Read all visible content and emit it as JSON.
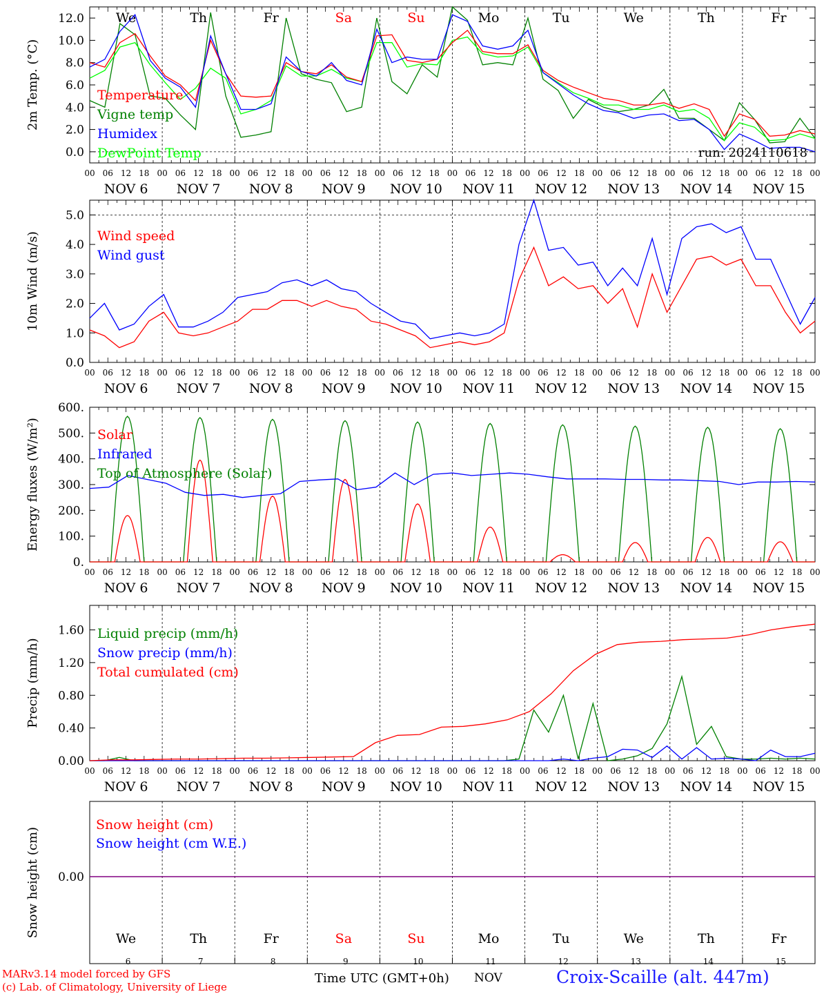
{
  "chart_data": [
    {
      "type": "line",
      "ylabel": "2m Temp. (°C)",
      "ylim": [
        -1.0,
        13.0
      ],
      "yticks": [
        "0.0",
        "2.0",
        "4.0",
        "6.0",
        "8.0",
        "10.0",
        "12.0"
      ],
      "ytick_values": [
        0,
        2,
        4,
        6,
        8,
        10,
        12
      ],
      "dashed_y": [
        0
      ],
      "grid": "vertical dashed at day boundaries",
      "legend_position": "left",
      "series": [
        {
          "name": "Temperature",
          "color": "#ff0000",
          "values": [
            8.0,
            7.6,
            9.8,
            10.6,
            8.6,
            6.8,
            6.0,
            4.6,
            10.0,
            7.0,
            5.0,
            4.9,
            5.0,
            8.0,
            7.2,
            7.0,
            7.8,
            6.7,
            6.3,
            10.4,
            10.5,
            8.2,
            8.0,
            8.3,
            9.8,
            10.9,
            9.0,
            8.8,
            8.8,
            9.6,
            7.3,
            6.4,
            5.8,
            5.3,
            4.8,
            4.6,
            4.2,
            4.2,
            4.4,
            3.9,
            4.3,
            3.8,
            1.4,
            3.4,
            2.9,
            1.4,
            1.5,
            1.9,
            1.6
          ]
        },
        {
          "name": "Vigne temp",
          "color": "#008000",
          "values": [
            4.6,
            4.0,
            11.5,
            10.5,
            5.0,
            4.8,
            3.3,
            2.0,
            12.5,
            5.0,
            1.3,
            1.5,
            1.8,
            12.0,
            7.0,
            6.5,
            6.2,
            3.6,
            4.0,
            12.0,
            6.3,
            5.2,
            7.8,
            6.7,
            13.0,
            11.8,
            7.8,
            8.0,
            7.8,
            12.0,
            6.5,
            5.5,
            3.0,
            4.7,
            4.0,
            3.6,
            3.8,
            4.2,
            5.6,
            3.0,
            3.0,
            2.0,
            1.0,
            4.4,
            2.9,
            0.8,
            0.9,
            3.0,
            1.2
          ]
        },
        {
          "name": "Humidex",
          "color": "#0000ff",
          "values": [
            7.6,
            8.3,
            10.8,
            12.3,
            8.2,
            6.6,
            5.8,
            4.0,
            10.4,
            7.0,
            3.8,
            3.8,
            4.3,
            8.5,
            7.2,
            6.8,
            8.0,
            6.4,
            6.0,
            11.0,
            8.0,
            8.5,
            8.3,
            8.3,
            12.3,
            11.7,
            9.5,
            9.2,
            9.5,
            10.9,
            7.1,
            6.1,
            5.1,
            4.3,
            3.7,
            3.5,
            3.0,
            3.3,
            3.4,
            2.8,
            2.9,
            2.0,
            0.2,
            1.6,
            1.0,
            0.3,
            0.4,
            0.4,
            0.0
          ]
        },
        {
          "name": "DewPoint Temp",
          "color": "#00ff00",
          "values": [
            6.6,
            7.3,
            9.4,
            9.8,
            7.8,
            6.2,
            4.7,
            5.7,
            7.5,
            6.6,
            3.4,
            3.8,
            4.6,
            7.7,
            6.8,
            6.8,
            7.4,
            6.6,
            6.3,
            9.8,
            9.8,
            7.6,
            7.9,
            7.8,
            10.0,
            10.3,
            8.8,
            8.5,
            8.6,
            9.4,
            7.1,
            6.2,
            5.3,
            4.8,
            4.2,
            4.2,
            3.8,
            3.8,
            4.2,
            3.6,
            3.8,
            3.0,
            1.0,
            2.6,
            2.2,
            1.0,
            1.1,
            1.6,
            1.2
          ]
        }
      ],
      "day_labels": [
        "We",
        "Th",
        "Fr",
        "Sa",
        "Su",
        "Mo",
        "Tu",
        "We",
        "Th",
        "Fr"
      ],
      "annotation": "run: 2024110618"
    },
    {
      "type": "line",
      "ylabel": "10m Wind (m/s)",
      "ylim": [
        0,
        5.5
      ],
      "yticks": [
        "0.0",
        "1.0",
        "2.0",
        "3.0",
        "4.0",
        "5.0"
      ],
      "ytick_values": [
        0,
        1,
        2,
        3,
        4,
        5
      ],
      "dashed_y": [
        5
      ],
      "legend_position": "top-left",
      "series": [
        {
          "name": "Wind speed",
          "color": "#ff0000",
          "values": [
            1.1,
            0.9,
            0.5,
            0.7,
            1.4,
            1.7,
            1.0,
            0.9,
            1.0,
            1.2,
            1.4,
            1.8,
            1.8,
            2.1,
            2.1,
            1.9,
            2.1,
            1.9,
            1.8,
            1.4,
            1.3,
            1.1,
            0.9,
            0.5,
            0.6,
            0.7,
            0.6,
            0.7,
            1.0,
            2.8,
            3.9,
            2.6,
            2.9,
            2.5,
            2.6,
            2.0,
            2.5,
            1.2,
            3.0,
            1.7,
            2.6,
            3.5,
            3.6,
            3.3,
            3.5,
            2.6,
            2.6,
            1.7,
            1.0,
            1.4
          ]
        },
        {
          "name": "Wind gust",
          "color": "#0000ff",
          "values": [
            1.5,
            2.0,
            1.1,
            1.3,
            1.9,
            2.3,
            1.2,
            1.2,
            1.4,
            1.7,
            2.2,
            2.3,
            2.4,
            2.7,
            2.8,
            2.6,
            2.8,
            2.5,
            2.4,
            2.0,
            1.7,
            1.4,
            1.3,
            0.8,
            0.9,
            1.0,
            0.9,
            1.0,
            1.3,
            4.0,
            5.5,
            3.8,
            3.9,
            3.3,
            3.4,
            2.6,
            3.2,
            2.6,
            4.2,
            2.3,
            4.2,
            4.6,
            4.7,
            4.4,
            4.6,
            3.5,
            3.5,
            2.4,
            1.3,
            2.2
          ]
        }
      ]
    },
    {
      "type": "line",
      "ylabel": "Energy fluxes (W/m²)",
      "ylim": [
        0,
        600
      ],
      "yticks": [
        "0.",
        "100.",
        "200.",
        "300.",
        "400.",
        "500.",
        "600."
      ],
      "ytick_values": [
        0,
        100,
        200,
        300,
        400,
        500,
        600
      ],
      "legend_position": "top-left",
      "series": [
        {
          "name": "Solar",
          "color": "#ff0000",
          "peaks": [
            180,
            395,
            255,
            320,
            225,
            135,
            28,
            75,
            95,
            78
          ]
        },
        {
          "name": "Infrared",
          "color": "#0000ff",
          "values": [
            285,
            290,
            335,
            320,
            305,
            270,
            258,
            262,
            250,
            258,
            265,
            312,
            318,
            322,
            280,
            290,
            345,
            300,
            340,
            345,
            335,
            340,
            345,
            340,
            330,
            322,
            322,
            322,
            320,
            320,
            318,
            318,
            315,
            312,
            300,
            310,
            310,
            312,
            310
          ]
        },
        {
          "name": "Top of Atmosphere (Solar)",
          "color": "#008000",
          "peaks": [
            565,
            560,
            553,
            548,
            543,
            537,
            532,
            527,
            522,
            517
          ]
        }
      ]
    },
    {
      "type": "line",
      "ylabel": "Precip (mm/h)",
      "ylim": [
        0,
        1.9
      ],
      "yticks": [
        "0.00",
        "0.40",
        "0.80",
        "1.20",
        "1.60"
      ],
      "ytick_values": [
        0,
        0.4,
        0.8,
        1.2,
        1.6
      ],
      "legend_position": "top-left",
      "series": [
        {
          "name": "Liquid precip (mm/h)",
          "color": "#008000",
          "values": [
            0,
            0,
            0.04,
            0,
            0,
            0,
            0,
            0,
            0,
            0,
            0,
            0,
            0,
            0,
            0,
            0,
            0,
            0,
            0,
            0,
            0,
            0,
            0,
            0,
            0,
            0,
            0,
            0,
            0,
            0.02,
            0.62,
            0.35,
            0.8,
            0.02,
            0.7,
            0,
            0.02,
            0.06,
            0.15,
            0.45,
            1.03,
            0.2,
            0.42,
            0.05,
            0.02,
            0.02,
            0.03,
            0.02,
            0.03,
            0.02
          ]
        },
        {
          "name": "Snow precip (mm/h)",
          "color": "#0000ff",
          "values": [
            0,
            0,
            0,
            0,
            0,
            0,
            0,
            0,
            0,
            0,
            0,
            0,
            0,
            0,
            0,
            0,
            0,
            0,
            0,
            0,
            0,
            0,
            0,
            0,
            0,
            0,
            0,
            0,
            0,
            0,
            0,
            0,
            0.02,
            0,
            0.03,
            0.05,
            0.14,
            0.13,
            0.04,
            0.18,
            0.02,
            0.16,
            0.02,
            0.03,
            0.02,
            0,
            0.13,
            0.05,
            0.05,
            0.09
          ]
        },
        {
          "name": "Total cumulated (cm)",
          "color": "#ff0000",
          "values": [
            0,
            0.01,
            0.01,
            0.015,
            0.02,
            0.02,
            0.025,
            0.03,
            0.03,
            0.035,
            0.04,
            0.045,
            0.05,
            0.22,
            0.31,
            0.32,
            0.41,
            0.42,
            0.45,
            0.5,
            0.6,
            0.82,
            1.1,
            1.3,
            1.42,
            1.45,
            1.46,
            1.48,
            1.49,
            1.5,
            1.54,
            1.6,
            1.64,
            1.67
          ]
        }
      ]
    },
    {
      "type": "line",
      "ylabel": "Snow height (cm)",
      "yticks": [
        "0.00"
      ],
      "ytick_values": [
        0
      ],
      "legend_position": "top-left",
      "series": [
        {
          "name": "Snow height (cm)",
          "color": "#ff0000",
          "values": [
            0,
            0
          ]
        },
        {
          "name": "Snow height (cm W.E.)",
          "color": "#0000ff",
          "values": [
            0,
            0
          ]
        }
      ],
      "day_labels": [
        "We",
        "Th",
        "Fr",
        "Sa",
        "Su",
        "Mo",
        "Tu",
        "We",
        "Th",
        "Fr"
      ],
      "day_numbers": [
        "6",
        "7",
        "8",
        "9",
        "10",
        "11",
        "12",
        "13",
        "14",
        "15"
      ]
    }
  ],
  "x_axis": {
    "hour_ticks": [
      "00",
      "06",
      "12",
      "18"
    ],
    "final_tick": "00",
    "dates": [
      "NOV  6",
      "NOV  7",
      "NOV  8",
      "NOV  9",
      "NOV 10",
      "NOV 11",
      "NOV 12",
      "NOV 13",
      "NOV 14",
      "NOV 15"
    ],
    "weekend_days": [
      "Sa",
      "Su"
    ],
    "time_label": "Time UTC (GMT+0h)",
    "month_label": "NOV"
  },
  "credits": {
    "line1": "MARv3.14 model forced by GFS",
    "line2": "(c) Lab. of Climatology, University of Liege"
  },
  "station": "Croix-Scaille (alt. 447m)",
  "colors": {
    "weekend": "#ff0000",
    "snow_line": "#800080",
    "station": "#1a1aff"
  }
}
